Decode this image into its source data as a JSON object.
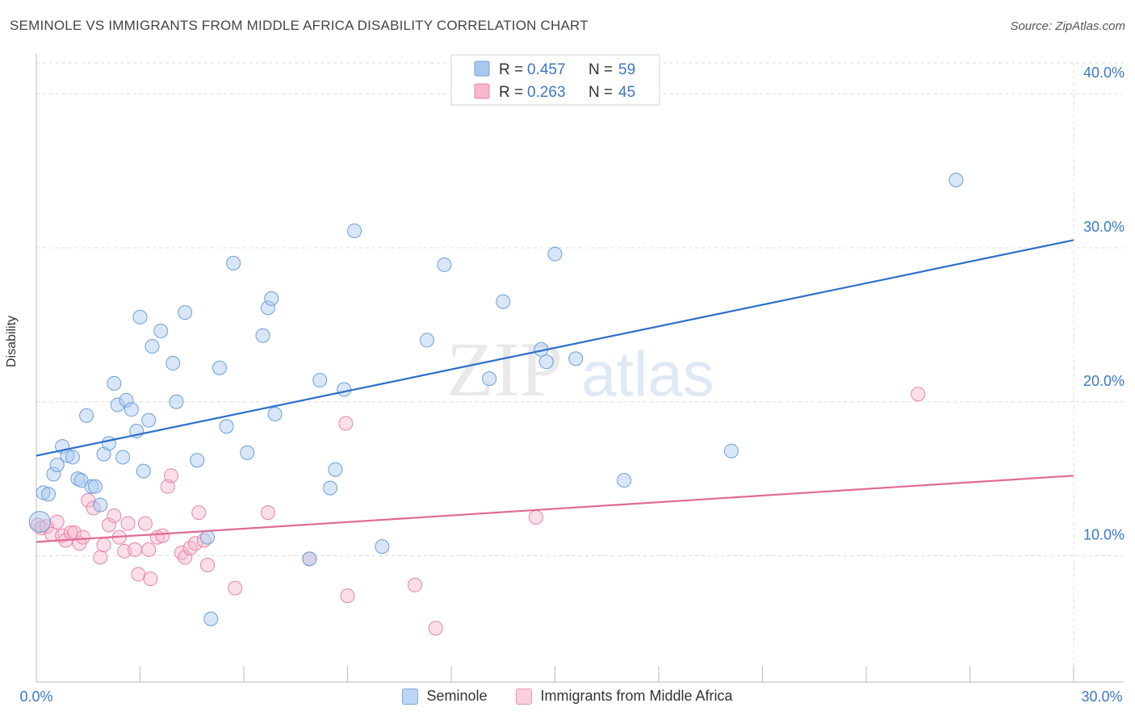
{
  "header": {
    "title": "SEMINOLE VS IMMIGRANTS FROM MIDDLE AFRICA DISABILITY CORRELATION CHART",
    "source": "Source: ZipAtlas.com"
  },
  "watermark": {
    "zip": "ZIP",
    "atlas": "atlas"
  },
  "colors": {
    "seminole_fill": "#a8c8f0",
    "seminole_stroke": "#6a9fd8",
    "seminole_line": "#2b6fc9",
    "immigrants_fill": "#f7b8cc",
    "immigrants_stroke": "#e884a6",
    "immigrants_line": "#e06a95",
    "axis_label": "#3b78c4"
  },
  "legend_top": [
    {
      "r_label": "R = ",
      "r_value": "0.457",
      "n_label": "N = ",
      "n_value": "59"
    },
    {
      "r_label": "R = ",
      "r_value": "0.263",
      "n_label": "N = ",
      "n_value": "45"
    }
  ],
  "chart_data": {
    "type": "scatter",
    "title": "SEMINOLE VS IMMIGRANTS FROM MIDDLE AFRICA DISABILITY CORRELATION CHART",
    "xlabel": "",
    "ylabel": "Disability",
    "xlim": [
      0,
      30
    ],
    "ylim": [
      1.8,
      42
    ],
    "x_tick_labels": [
      "0.0%",
      "30.0%"
    ],
    "y_ticks": [
      10,
      20,
      30,
      40
    ],
    "y_tick_labels": [
      "10.0%",
      "20.0%",
      "30.0%",
      "40.0%"
    ],
    "grid": true,
    "legend_position": "top-center",
    "series": [
      {
        "name": "Seminole",
        "trend": [
          [
            0,
            16.5
          ],
          [
            30,
            30.5
          ]
        ],
        "points": [
          [
            0.1,
            12.2
          ],
          [
            0.2,
            14.1
          ],
          [
            0.35,
            14.0
          ],
          [
            0.5,
            15.3
          ],
          [
            0.6,
            15.9
          ],
          [
            0.75,
            17.1
          ],
          [
            0.9,
            16.5
          ],
          [
            1.05,
            16.4
          ],
          [
            1.2,
            15.0
          ],
          [
            1.3,
            14.9
          ],
          [
            1.45,
            19.1
          ],
          [
            1.6,
            14.5
          ],
          [
            1.7,
            14.5
          ],
          [
            1.85,
            13.3
          ],
          [
            1.95,
            16.6
          ],
          [
            2.1,
            17.3
          ],
          [
            2.25,
            21.2
          ],
          [
            2.35,
            19.8
          ],
          [
            2.5,
            16.4
          ],
          [
            2.6,
            20.1
          ],
          [
            2.75,
            19.5
          ],
          [
            2.9,
            18.1
          ],
          [
            3.0,
            25.5
          ],
          [
            3.1,
            15.5
          ],
          [
            3.25,
            18.8
          ],
          [
            3.35,
            23.6
          ],
          [
            3.6,
            24.6
          ],
          [
            3.95,
            22.5
          ],
          [
            4.05,
            20.0
          ],
          [
            4.3,
            25.8
          ],
          [
            4.65,
            16.2
          ],
          [
            4.95,
            11.2
          ],
          [
            5.05,
            5.9
          ],
          [
            5.3,
            22.2
          ],
          [
            5.5,
            18.4
          ],
          [
            5.7,
            29.0
          ],
          [
            6.1,
            16.7
          ],
          [
            6.7,
            26.1
          ],
          [
            6.8,
            26.7
          ],
          [
            6.9,
            19.2
          ],
          [
            6.55,
            24.3
          ],
          [
            7.9,
            9.8
          ],
          [
            8.2,
            21.4
          ],
          [
            8.5,
            14.4
          ],
          [
            8.65,
            15.6
          ],
          [
            8.9,
            20.8
          ],
          [
            9.2,
            31.1
          ],
          [
            10.0,
            10.6
          ],
          [
            11.3,
            24.0
          ],
          [
            11.8,
            28.9
          ],
          [
            13.1,
            21.5
          ],
          [
            13.5,
            26.5
          ],
          [
            14.6,
            23.4
          ],
          [
            14.75,
            22.6
          ],
          [
            15.0,
            29.6
          ],
          [
            15.6,
            22.8
          ],
          [
            17.0,
            14.9
          ],
          [
            20.1,
            16.8
          ],
          [
            26.6,
            34.4
          ]
        ]
      },
      {
        "name": "Immigrants from Middle Africa",
        "trend": [
          [
            0,
            10.9
          ],
          [
            30,
            15.2
          ]
        ],
        "points": [
          [
            0.05,
            12.0
          ],
          [
            0.15,
            11.8
          ],
          [
            0.3,
            11.9
          ],
          [
            0.45,
            11.4
          ],
          [
            0.6,
            12.2
          ],
          [
            0.75,
            11.3
          ],
          [
            0.85,
            11.0
          ],
          [
            1.0,
            11.5
          ],
          [
            1.1,
            11.5
          ],
          [
            1.25,
            10.8
          ],
          [
            1.35,
            11.2
          ],
          [
            1.5,
            13.6
          ],
          [
            1.65,
            13.1
          ],
          [
            1.85,
            9.9
          ],
          [
            1.95,
            10.7
          ],
          [
            2.1,
            12.0
          ],
          [
            2.25,
            12.6
          ],
          [
            2.4,
            11.2
          ],
          [
            2.55,
            10.3
          ],
          [
            2.65,
            12.1
          ],
          [
            2.85,
            10.4
          ],
          [
            2.95,
            8.8
          ],
          [
            3.15,
            12.1
          ],
          [
            3.25,
            10.4
          ],
          [
            3.3,
            8.5
          ],
          [
            3.5,
            11.2
          ],
          [
            3.65,
            11.3
          ],
          [
            3.8,
            14.5
          ],
          [
            3.9,
            15.2
          ],
          [
            4.2,
            10.2
          ],
          [
            4.3,
            9.9
          ],
          [
            4.45,
            10.5
          ],
          [
            4.6,
            10.8
          ],
          [
            4.7,
            12.8
          ],
          [
            4.85,
            11.0
          ],
          [
            4.95,
            9.4
          ],
          [
            5.75,
            7.9
          ],
          [
            6.7,
            12.8
          ],
          [
            7.9,
            9.8
          ],
          [
            8.95,
            18.6
          ],
          [
            9.0,
            7.4
          ],
          [
            10.95,
            8.1
          ],
          [
            11.55,
            5.3
          ],
          [
            14.45,
            12.5
          ],
          [
            25.5,
            20.5
          ]
        ]
      }
    ]
  }
}
